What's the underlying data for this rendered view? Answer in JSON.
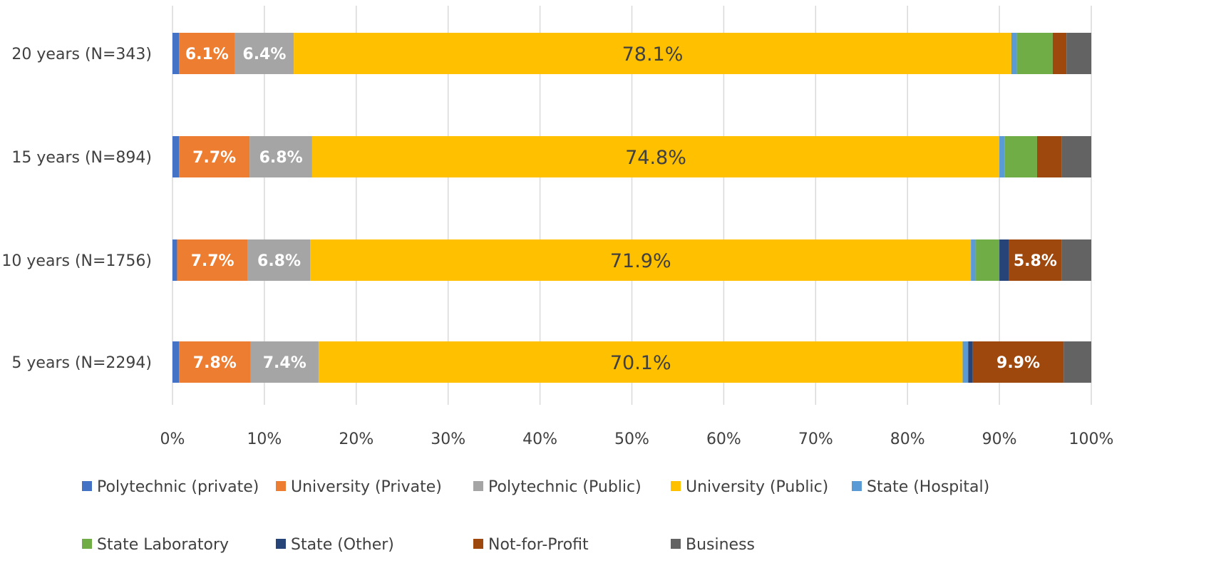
{
  "chart_data": {
    "type": "bar",
    "orientation": "horizontal",
    "stacked": "percent",
    "title": "",
    "xlabel": "",
    "ylabel": "",
    "xlim": [
      0,
      100
    ],
    "x_ticks": [
      "0%",
      "10%",
      "20%",
      "30%",
      "40%",
      "50%",
      "60%",
      "70%",
      "80%",
      "90%",
      "100%"
    ],
    "grid": "vertical",
    "legend": "bottom",
    "categories": [
      "20 years (N=343)",
      "15 years (N=894)",
      "10 years (N=1756)",
      "5 years (N=2294)"
    ],
    "series": [
      {
        "name": "Polytechnic (private)",
        "color": "#4472C4",
        "values": [
          0.7,
          0.7,
          0.5,
          0.7
        ],
        "labels": [
          "",
          "",
          "",
          ""
        ]
      },
      {
        "name": "University (Private)",
        "color": "#ED7D31",
        "values": [
          6.1,
          7.7,
          7.7,
          7.8
        ],
        "labels": [
          "6.1%",
          "7.7%",
          "7.7%",
          "7.8%"
        ]
      },
      {
        "name": "Polytechnic (Public)",
        "color": "#A5A5A5",
        "values": [
          6.4,
          6.8,
          6.8,
          7.4
        ],
        "labels": [
          "6.4%",
          "6.8%",
          "6.8%",
          "7.4%"
        ]
      },
      {
        "name": "University (Public)",
        "color": "#FFC000",
        "values": [
          78.1,
          74.8,
          71.9,
          70.1
        ],
        "labels": [
          "78.1%",
          "74.8%",
          "71.9%",
          "70.1%"
        ]
      },
      {
        "name": "State (Hospital)",
        "color": "#5B9BD5",
        "values": [
          0.6,
          0.6,
          0.5,
          0.6
        ],
        "labels": [
          "",
          "",
          "",
          ""
        ]
      },
      {
        "name": "State Laboratory",
        "color": "#70AD47",
        "values": [
          3.9,
          3.5,
          2.6,
          0.0
        ],
        "labels": [
          "",
          "",
          "",
          ""
        ]
      },
      {
        "name": "State (Other)",
        "color": "#264478",
        "values": [
          0.0,
          0.0,
          1.0,
          0.5
        ],
        "labels": [
          "",
          "",
          "",
          ""
        ]
      },
      {
        "name": "Not-for-Profit",
        "color": "#9E480E",
        "values": [
          1.5,
          2.7,
          5.8,
          9.9
        ],
        "labels": [
          "",
          "",
          "5.8%",
          "9.9%"
        ]
      },
      {
        "name": "Business",
        "color": "#636363",
        "values": [
          2.7,
          3.2,
          3.2,
          3.0
        ],
        "labels": [
          "",
          "",
          "",
          ""
        ]
      }
    ]
  }
}
